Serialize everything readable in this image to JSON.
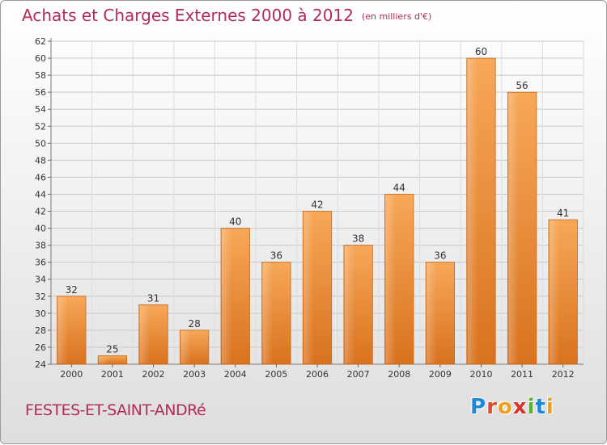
{
  "header": {
    "title": "Achats et Charges Externes 2000 à 2012",
    "subtitle": "(en milliers d'€)"
  },
  "footer": {
    "commune": "FESTES-ET-SAINT-ANDRé",
    "logo_letters": [
      "P",
      "r",
      "o",
      "x",
      "i",
      "t",
      "i"
    ],
    "logo_colors": [
      "#1e88d8",
      "#e24a2a",
      "#f0a020",
      "#d8322a",
      "#58b030",
      "#1e88d8",
      "#e8a020"
    ]
  },
  "chart_data": {
    "type": "bar",
    "title": "Achats et Charges Externes 2000 à 2012",
    "subtitle": "(en milliers d'€)",
    "categories": [
      "2000",
      "2001",
      "2002",
      "2003",
      "2004",
      "2005",
      "2006",
      "2007",
      "2008",
      "2009",
      "2010",
      "2011",
      "2012"
    ],
    "values": [
      32,
      25,
      31,
      28,
      40,
      36,
      42,
      38,
      44,
      36,
      60,
      56,
      41
    ],
    "ylim": [
      24,
      62
    ],
    "yticks": [
      24,
      26,
      28,
      30,
      32,
      34,
      36,
      38,
      40,
      42,
      44,
      46,
      48,
      50,
      52,
      54,
      56,
      58,
      60,
      62
    ],
    "grid": true,
    "bar_color": "#f0923a",
    "legend": "none"
  }
}
